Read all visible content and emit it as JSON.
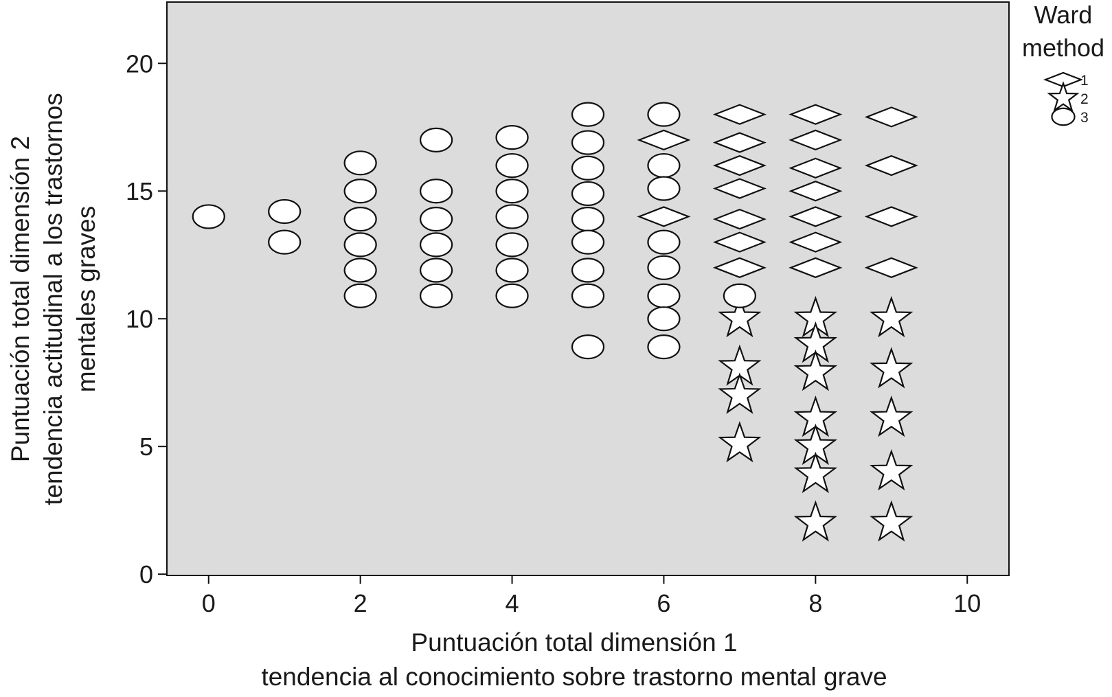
{
  "chart_data": {
    "type": "scatter",
    "title": "",
    "xlabel_lines": [
      "Puntuación total dimensión 1",
      "tendencia al conocimiento sobre trastorno mental grave"
    ],
    "ylabel_lines": [
      "Puntuación total dimensión 2",
      "tendencia actitudinal a los trastornos",
      "mentales graves"
    ],
    "xlim": [
      -0.55,
      10.55
    ],
    "ylim": [
      -0.05,
      22.4
    ],
    "x_ticks": [
      0,
      2,
      4,
      6,
      8,
      10
    ],
    "y_ticks": [
      0,
      5,
      10,
      15,
      20
    ],
    "grid": false,
    "background_color": "#dcdcdc",
    "legend": {
      "title_lines": [
        "Ward",
        "method"
      ],
      "placement": "top-right outside",
      "entries": [
        {
          "label": "1",
          "marker": "diamond"
        },
        {
          "label": "2",
          "marker": "star"
        },
        {
          "label": "3",
          "marker": "ellipse"
        }
      ]
    },
    "series": [
      {
        "name": "1",
        "marker": "diamond",
        "points": [
          [
            6,
            17
          ],
          [
            6,
            14
          ],
          [
            7,
            18
          ],
          [
            7,
            16.9
          ],
          [
            7,
            16
          ],
          [
            7,
            15.1
          ],
          [
            7,
            13.9
          ],
          [
            7,
            13
          ],
          [
            7,
            12
          ],
          [
            8,
            18
          ],
          [
            8,
            17
          ],
          [
            8,
            15.9
          ],
          [
            8,
            15
          ],
          [
            8,
            14
          ],
          [
            8,
            13
          ],
          [
            8,
            12
          ],
          [
            9,
            17.9
          ],
          [
            9,
            16
          ],
          [
            9,
            14
          ],
          [
            9,
            12
          ]
        ]
      },
      {
        "name": "2",
        "marker": "star",
        "points": [
          [
            7,
            10
          ],
          [
            7,
            8.1
          ],
          [
            7,
            7
          ],
          [
            7,
            5.1
          ],
          [
            8,
            10
          ],
          [
            8,
            9
          ],
          [
            8,
            7.9
          ],
          [
            8,
            6.1
          ],
          [
            8,
            5
          ],
          [
            8,
            3.9
          ],
          [
            8,
            2
          ],
          [
            9,
            10
          ],
          [
            9,
            8
          ],
          [
            9,
            6.1
          ],
          [
            9,
            4
          ],
          [
            9,
            2
          ]
        ]
      },
      {
        "name": "3",
        "marker": "ellipse",
        "points": [
          [
            0,
            14
          ],
          [
            1,
            14.2
          ],
          [
            1,
            13
          ],
          [
            2,
            16.1
          ],
          [
            2,
            15
          ],
          [
            2,
            13.9
          ],
          [
            2,
            12.9
          ],
          [
            2,
            11.9
          ],
          [
            2,
            10.9
          ],
          [
            3,
            17
          ],
          [
            3,
            15
          ],
          [
            3,
            13.9
          ],
          [
            3,
            12.9
          ],
          [
            3,
            11.9
          ],
          [
            3,
            10.9
          ],
          [
            4,
            17.1
          ],
          [
            4,
            16
          ],
          [
            4,
            15
          ],
          [
            4,
            14
          ],
          [
            4,
            12.9
          ],
          [
            4,
            11.9
          ],
          [
            4,
            10.9
          ],
          [
            5,
            18
          ],
          [
            5,
            16.9
          ],
          [
            5,
            15.9
          ],
          [
            5,
            14.9
          ],
          [
            5,
            13.9
          ],
          [
            5,
            13
          ],
          [
            5,
            11.9
          ],
          [
            5,
            10.9
          ],
          [
            5,
            8.9
          ],
          [
            6,
            18
          ],
          [
            6,
            16
          ],
          [
            6,
            15.1
          ],
          [
            6,
            13
          ],
          [
            6,
            12
          ],
          [
            6,
            10.9
          ],
          [
            6,
            10
          ],
          [
            6,
            8.9
          ],
          [
            7,
            10.9
          ]
        ]
      }
    ]
  }
}
